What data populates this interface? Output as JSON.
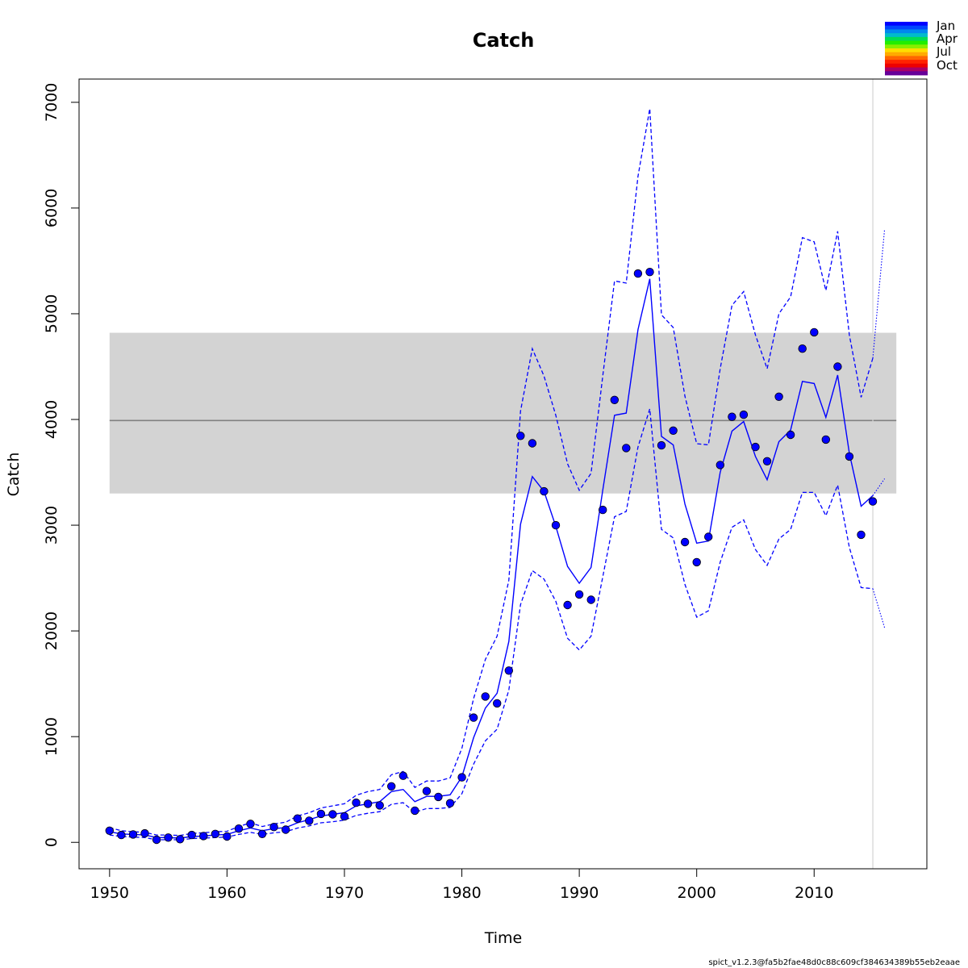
{
  "chart_data": {
    "type": "line",
    "title": "Catch",
    "xlabel": "Time",
    "ylabel": "Catch",
    "xlim": [
      1947.4,
      2019.6
    ],
    "ylim": [
      -250,
      7220
    ],
    "xticks": [
      1950,
      1960,
      1970,
      1980,
      1990,
      2000,
      2010
    ],
    "yticks": [
      0,
      1000,
      2000,
      3000,
      4000,
      5000,
      6000,
      7000
    ],
    "grid": false,
    "colors": {
      "series": "#0000ff",
      "band": "#d3d3d3",
      "msy_line": "#808080",
      "vline": "#d3d3d3"
    },
    "legend": {
      "position": "top-right",
      "labels": [
        "Jan",
        "Apr",
        "Jul",
        "Oct"
      ],
      "colors": [
        "#0000ff",
        "#0044ff",
        "#0088ee",
        "#00bbcc",
        "#00dd55",
        "#22ee00",
        "#88ee00",
        "#ffdd00",
        "#ffaa00",
        "#ff6600",
        "#ff2200",
        "#ee0000",
        "#aa0066",
        "#660099"
      ]
    },
    "msy": {
      "value": 3990,
      "lower": 3300,
      "upper": 4820,
      "x_range": [
        1950,
        2017
      ]
    },
    "vline_x": 2015,
    "observed": {
      "x": [
        1950,
        1951,
        1952,
        1953,
        1954,
        1955,
        1956,
        1957,
        1958,
        1959,
        1960,
        1961,
        1962,
        1963,
        1964,
        1965,
        1966,
        1967,
        1968,
        1969,
        1970,
        1971,
        1972,
        1973,
        1974,
        1975,
        1976,
        1977,
        1978,
        1979,
        1980,
        1981,
        1982,
        1983,
        1984,
        1985,
        1986,
        1987,
        1988,
        1989,
        1990,
        1991,
        1992,
        1993,
        1994,
        1995,
        1996,
        1997,
        1998,
        1999,
        2000,
        2001,
        2002,
        2003,
        2004,
        2005,
        2006,
        2007,
        2008,
        2009,
        2010,
        2011,
        2012,
        2013,
        2014,
        2015
      ],
      "y": [
        110,
        70,
        75,
        85,
        25,
        45,
        30,
        70,
        60,
        80,
        55,
        130,
        175,
        80,
        145,
        120,
        225,
        205,
        270,
        265,
        245,
        375,
        365,
        350,
        530,
        630,
        300,
        485,
        430,
        370,
        615,
        1180,
        1380,
        1315,
        1625,
        3845,
        3775,
        3320,
        3000,
        2245,
        2345,
        2295,
        3145,
        4185,
        3730,
        5380,
        5395,
        3755,
        3895,
        2840,
        2650,
        2890,
        3570,
        4025,
        4045,
        3740,
        3605,
        4215,
        3855,
        4670,
        4825,
        3810,
        4500,
        3650,
        2910,
        3225
      ]
    },
    "fitted": {
      "x": [
        1950,
        1951,
        1952,
        1953,
        1954,
        1955,
        1956,
        1957,
        1958,
        1959,
        1960,
        1961,
        1962,
        1963,
        1964,
        1965,
        1966,
        1967,
        1968,
        1969,
        1970,
        1971,
        1972,
        1973,
        1974,
        1975,
        1976,
        1977,
        1978,
        1979,
        1980,
        1981,
        1982,
        1983,
        1984,
        1985,
        1986,
        1987,
        1988,
        1989,
        1990,
        1991,
        1992,
        1993,
        1994,
        1995,
        1996,
        1997,
        1998,
        1999,
        2000,
        2001,
        2002,
        2003,
        2004,
        2005,
        2006,
        2007,
        2008,
        2009,
        2010,
        2011,
        2012,
        2013,
        2014,
        2015
      ],
      "y": [
        100,
        80,
        75,
        70,
        45,
        45,
        40,
        55,
        60,
        70,
        75,
        110,
        135,
        110,
        130,
        140,
        185,
        215,
        250,
        265,
        280,
        345,
        365,
        385,
        480,
        500,
        385,
        435,
        435,
        450,
        620,
        990,
        1270,
        1410,
        1900,
        3010,
        3460,
        3320,
        2990,
        2610,
        2450,
        2600,
        3330,
        4040,
        4060,
        4850,
        5330,
        3840,
        3760,
        3200,
        2830,
        2850,
        3500,
        3890,
        3980,
        3650,
        3430,
        3790,
        3900,
        4360,
        4340,
        4020,
        4420,
        3680,
        3180,
        3280
      ]
    },
    "upper_ci": {
      "x": [
        1950,
        1951,
        1952,
        1953,
        1954,
        1955,
        1956,
        1957,
        1958,
        1959,
        1960,
        1961,
        1962,
        1963,
        1964,
        1965,
        1966,
        1967,
        1968,
        1969,
        1970,
        1971,
        1972,
        1973,
        1974,
        1975,
        1976,
        1977,
        1978,
        1979,
        1980,
        1981,
        1982,
        1983,
        1984,
        1985,
        1986,
        1987,
        1988,
        1989,
        1990,
        1991,
        1992,
        1993,
        1994,
        1995,
        1996,
        1997,
        1998,
        1999,
        2000,
        2001,
        2002,
        2003,
        2004,
        2005,
        2006,
        2007,
        2008,
        2009,
        2010,
        2011,
        2012,
        2013,
        2014,
        2015
      ],
      "y": [
        140,
        110,
        100,
        95,
        70,
        70,
        65,
        85,
        90,
        100,
        105,
        150,
        185,
        150,
        175,
        190,
        250,
        280,
        325,
        345,
        365,
        445,
        480,
        500,
        640,
        670,
        520,
        580,
        580,
        610,
        890,
        1360,
        1730,
        1950,
        2480,
        4080,
        4670,
        4410,
        4040,
        3580,
        3330,
        3490,
        4410,
        5310,
        5290,
        6300,
        6940,
        4990,
        4870,
        4220,
        3770,
        3760,
        4480,
        5080,
        5210,
        4800,
        4480,
        5000,
        5160,
        5720,
        5680,
        5220,
        5780,
        4800,
        4210,
        4580
      ]
    },
    "lower_ci": {
      "x": [
        1950,
        1951,
        1952,
        1953,
        1954,
        1955,
        1956,
        1957,
        1958,
        1959,
        1960,
        1961,
        1962,
        1963,
        1964,
        1965,
        1966,
        1967,
        1968,
        1969,
        1970,
        1971,
        1972,
        1973,
        1974,
        1975,
        1976,
        1977,
        1978,
        1979,
        1980,
        1981,
        1982,
        1983,
        1984,
        1985,
        1986,
        1987,
        1988,
        1989,
        1990,
        1991,
        1992,
        1993,
        1994,
        1995,
        1996,
        1997,
        1998,
        1999,
        2000,
        2001,
        2002,
        2003,
        2004,
        2005,
        2006,
        2007,
        2008,
        2009,
        2010,
        2011,
        2012,
        2013,
        2014,
        2015
      ],
      "y": [
        70,
        55,
        50,
        45,
        25,
        25,
        25,
        35,
        40,
        45,
        50,
        75,
        95,
        75,
        90,
        100,
        135,
        155,
        185,
        195,
        210,
        255,
        275,
        290,
        360,
        375,
        285,
        320,
        320,
        330,
        460,
        740,
        960,
        1070,
        1440,
        2250,
        2570,
        2490,
        2280,
        1930,
        1820,
        1950,
        2510,
        3080,
        3130,
        3740,
        4100,
        2960,
        2880,
        2440,
        2130,
        2190,
        2650,
        2980,
        3050,
        2770,
        2620,
        2870,
        2960,
        3310,
        3310,
        3090,
        3380,
        2790,
        2410,
        2400
      ]
    },
    "forecast": {
      "x": [
        2015,
        2016
      ],
      "fitted": [
        3280,
        3440
      ],
      "upper": [
        4580,
        5800
      ],
      "lower": [
        2400,
        2030
      ]
    },
    "footnote": "spict_v1.2.3@fa5b2fae48d0c88c609cf384634389b55eb2eaae"
  }
}
